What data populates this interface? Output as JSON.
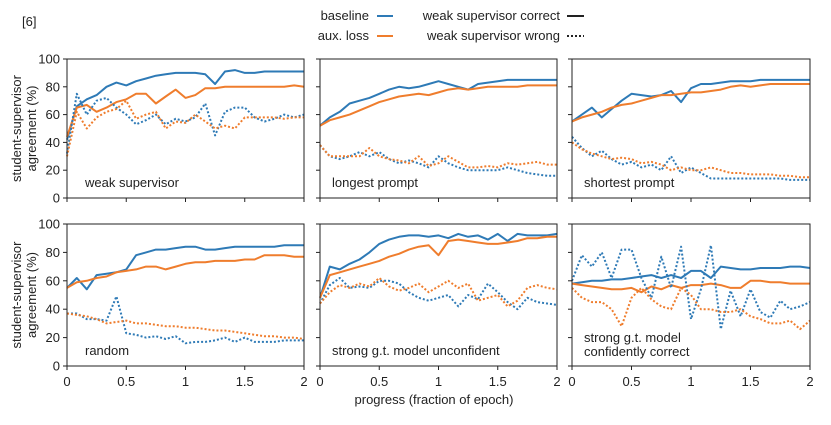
{
  "figure_ref": "[6]",
  "colors": {
    "baseline": "#2e7ab6",
    "aux": "#ef7d2d",
    "axis": "#222222"
  },
  "legend": {
    "series": [
      {
        "label": "baseline",
        "color": "#2e7ab6"
      },
      {
        "label": "aux. loss",
        "color": "#ef7d2d"
      }
    ],
    "styles": [
      {
        "label": "weak supervisor correct",
        "style": "solid"
      },
      {
        "label": "weak supervisor wrong",
        "style": "dotted"
      }
    ]
  },
  "xlabel": "progress (fraction of epoch)",
  "ylabel_lines": [
    "student-supervisor",
    "agreement (%)"
  ],
  "chart_data": [
    {
      "type": "line",
      "title": "weak supervisor",
      "x": [
        0,
        0.083,
        0.167,
        0.25,
        0.333,
        0.417,
        0.5,
        0.583,
        0.667,
        0.75,
        0.833,
        0.917,
        1,
        1.083,
        1.167,
        1.25,
        1.333,
        1.417,
        1.5,
        1.583,
        1.667,
        1.75,
        1.833,
        1.917,
        2
      ],
      "xlim": [
        0,
        2
      ],
      "ylim": [
        0,
        100
      ],
      "xticks": [
        0,
        0.5,
        1,
        1.5,
        2
      ],
      "yticks": [
        0,
        20,
        40,
        60,
        80,
        100
      ],
      "series": [
        {
          "name": "baseline",
          "style": "correct",
          "values": [
            42,
            66,
            71,
            74,
            80,
            83,
            81,
            84,
            86,
            88,
            89,
            90,
            90,
            90,
            89,
            82,
            91,
            92,
            90,
            90,
            91,
            91,
            91,
            91,
            91
          ]
        },
        {
          "name": "aux. loss",
          "style": "correct",
          "values": [
            44,
            65,
            67,
            62,
            65,
            69,
            71,
            75,
            75,
            68,
            73,
            78,
            72,
            74,
            79,
            79,
            80,
            80,
            80,
            80,
            80,
            80,
            80,
            81,
            80
          ]
        },
        {
          "name": "baseline",
          "style": "wrong",
          "values": [
            32,
            75,
            60,
            70,
            72,
            65,
            60,
            53,
            56,
            60,
            53,
            57,
            55,
            58,
            68,
            45,
            62,
            65,
            65,
            58,
            55,
            57,
            60,
            58,
            60
          ]
        },
        {
          "name": "aux. loss",
          "style": "wrong",
          "values": [
            30,
            62,
            50,
            58,
            62,
            64,
            70,
            57,
            60,
            62,
            50,
            55,
            54,
            60,
            55,
            50,
            52,
            50,
            58,
            58,
            58,
            58,
            57,
            58,
            58
          ]
        }
      ]
    },
    {
      "type": "line",
      "title": "longest prompt",
      "x": [
        0,
        0.083,
        0.167,
        0.25,
        0.333,
        0.417,
        0.5,
        0.583,
        0.667,
        0.75,
        0.833,
        0.917,
        1,
        1.083,
        1.167,
        1.25,
        1.333,
        1.417,
        1.5,
        1.583,
        1.667,
        1.75,
        1.833,
        1.917,
        2
      ],
      "xlim": [
        0,
        2
      ],
      "ylim": [
        0,
        100
      ],
      "xticks": [
        0,
        0.5,
        1,
        1.5,
        2
      ],
      "yticks": [
        0,
        20,
        40,
        60,
        80,
        100
      ],
      "series": [
        {
          "name": "baseline",
          "style": "correct",
          "values": [
            52,
            58,
            62,
            68,
            70,
            72,
            75,
            78,
            80,
            79,
            80,
            82,
            84,
            82,
            80,
            78,
            82,
            83,
            84,
            85,
            85,
            85,
            85,
            85,
            85
          ]
        },
        {
          "name": "aux. loss",
          "style": "correct",
          "values": [
            52,
            56,
            58,
            60,
            63,
            66,
            69,
            71,
            73,
            74,
            75,
            74,
            76,
            78,
            79,
            78,
            79,
            80,
            80,
            80,
            80,
            81,
            81,
            81,
            81
          ]
        },
        {
          "name": "baseline",
          "style": "wrong",
          "values": [
            38,
            30,
            28,
            30,
            33,
            30,
            33,
            28,
            25,
            27,
            25,
            22,
            30,
            25,
            22,
            20,
            20,
            20,
            20,
            22,
            20,
            18,
            17,
            16,
            16
          ]
        },
        {
          "name": "aux. loss",
          "style": "wrong",
          "values": [
            38,
            30,
            30,
            30,
            30,
            36,
            30,
            28,
            27,
            25,
            30,
            23,
            25,
            30,
            26,
            22,
            22,
            23,
            22,
            25,
            24,
            25,
            26,
            24,
            24
          ]
        }
      ]
    },
    {
      "type": "line",
      "title": "shortest prompt",
      "x": [
        0,
        0.083,
        0.167,
        0.25,
        0.333,
        0.417,
        0.5,
        0.583,
        0.667,
        0.75,
        0.833,
        0.917,
        1,
        1.083,
        1.167,
        1.25,
        1.333,
        1.417,
        1.5,
        1.583,
        1.667,
        1.75,
        1.833,
        1.917,
        2
      ],
      "xlim": [
        0,
        2
      ],
      "ylim": [
        0,
        100
      ],
      "xticks": [
        0,
        0.5,
        1,
        1.5,
        2
      ],
      "yticks": [
        0,
        20,
        40,
        60,
        80,
        100
      ],
      "series": [
        {
          "name": "baseline",
          "style": "correct",
          "values": [
            55,
            60,
            65,
            58,
            64,
            70,
            75,
            74,
            73,
            74,
            77,
            69,
            79,
            82,
            82,
            83,
            84,
            84,
            84,
            85,
            85,
            85,
            85,
            85,
            85
          ]
        },
        {
          "name": "aux. loss",
          "style": "correct",
          "values": [
            55,
            58,
            60,
            62,
            65,
            67,
            68,
            70,
            72,
            74,
            74,
            75,
            76,
            76,
            77,
            78,
            80,
            81,
            80,
            81,
            82,
            82,
            82,
            82,
            82
          ]
        },
        {
          "name": "baseline",
          "style": "wrong",
          "values": [
            44,
            36,
            30,
            34,
            28,
            24,
            26,
            22,
            24,
            20,
            30,
            18,
            22,
            18,
            14,
            14,
            14,
            14,
            14,
            14,
            14,
            14,
            13,
            13,
            13
          ]
        },
        {
          "name": "aux. loss",
          "style": "wrong",
          "values": [
            40,
            35,
            32,
            30,
            28,
            29,
            28,
            25,
            26,
            24,
            20,
            22,
            20,
            20,
            22,
            20,
            18,
            18,
            17,
            17,
            17,
            16,
            16,
            15,
            15
          ]
        }
      ]
    },
    {
      "type": "line",
      "title": "random",
      "x": [
        0,
        0.083,
        0.167,
        0.25,
        0.333,
        0.417,
        0.5,
        0.583,
        0.667,
        0.75,
        0.833,
        0.917,
        1,
        1.083,
        1.167,
        1.25,
        1.333,
        1.417,
        1.5,
        1.583,
        1.667,
        1.75,
        1.833,
        1.917,
        2
      ],
      "xlim": [
        0,
        2
      ],
      "ylim": [
        0,
        100
      ],
      "xticks": [
        0,
        0.5,
        1,
        1.5,
        2
      ],
      "yticks": [
        0,
        20,
        40,
        60,
        80,
        100
      ],
      "series": [
        {
          "name": "baseline",
          "style": "correct",
          "values": [
            55,
            62,
            54,
            64,
            65,
            66,
            68,
            78,
            80,
            82,
            82,
            83,
            84,
            84,
            82,
            82,
            83,
            84,
            84,
            84,
            84,
            84,
            85,
            85,
            85
          ]
        },
        {
          "name": "aux. loss",
          "style": "correct",
          "values": [
            55,
            59,
            60,
            62,
            63,
            66,
            67,
            68,
            70,
            70,
            68,
            70,
            72,
            73,
            73,
            74,
            74,
            74,
            75,
            75,
            78,
            78,
            78,
            77,
            77
          ]
        },
        {
          "name": "baseline",
          "style": "wrong",
          "values": [
            37,
            37,
            33,
            33,
            32,
            49,
            23,
            22,
            20,
            21,
            19,
            21,
            16,
            17,
            17,
            18,
            20,
            17,
            20,
            17,
            17,
            17,
            18,
            18,
            18
          ]
        },
        {
          "name": "aux. loss",
          "style": "wrong",
          "values": [
            37,
            36,
            35,
            33,
            30,
            31,
            32,
            30,
            30,
            29,
            28,
            28,
            27,
            27,
            26,
            25,
            25,
            24,
            23,
            22,
            21,
            21,
            20,
            20,
            19
          ]
        }
      ]
    },
    {
      "type": "line",
      "title": "strong g.t. model unconfident",
      "x": [
        0,
        0.083,
        0.167,
        0.25,
        0.333,
        0.417,
        0.5,
        0.583,
        0.667,
        0.75,
        0.833,
        0.917,
        1,
        1.083,
        1.167,
        1.25,
        1.333,
        1.417,
        1.5,
        1.583,
        1.667,
        1.75,
        1.833,
        1.917,
        2
      ],
      "xlim": [
        0,
        2
      ],
      "ylim": [
        0,
        100
      ],
      "xticks": [
        0,
        0.5,
        1,
        1.5,
        2
      ],
      "yticks": [
        0,
        20,
        40,
        60,
        80,
        100
      ],
      "series": [
        {
          "name": "baseline",
          "style": "correct",
          "values": [
            48,
            70,
            68,
            72,
            75,
            80,
            86,
            89,
            91,
            92,
            92,
            91,
            92,
            90,
            93,
            91,
            92,
            89,
            93,
            88,
            93,
            92,
            92,
            92,
            93
          ]
        },
        {
          "name": "aux. loss",
          "style": "correct",
          "values": [
            48,
            64,
            66,
            68,
            70,
            72,
            74,
            77,
            79,
            82,
            84,
            85,
            78,
            88,
            89,
            88,
            87,
            86,
            86,
            87,
            88,
            90,
            90,
            91,
            91
          ]
        },
        {
          "name": "baseline",
          "style": "wrong",
          "values": [
            44,
            57,
            62,
            55,
            56,
            55,
            60,
            60,
            58,
            52,
            48,
            46,
            48,
            50,
            42,
            50,
            47,
            58,
            52,
            45,
            40,
            48,
            45,
            44,
            43
          ]
        },
        {
          "name": "aux. loss",
          "style": "wrong",
          "values": [
            44,
            52,
            57,
            55,
            58,
            56,
            62,
            56,
            53,
            55,
            58,
            52,
            56,
            60,
            55,
            58,
            46,
            48,
            50,
            42,
            46,
            55,
            57,
            55,
            54
          ]
        }
      ]
    },
    {
      "type": "line",
      "title": "strong g.t. model confidently correct",
      "x": [
        0,
        0.083,
        0.167,
        0.25,
        0.333,
        0.417,
        0.5,
        0.583,
        0.667,
        0.75,
        0.833,
        0.917,
        1,
        1.083,
        1.167,
        1.25,
        1.333,
        1.417,
        1.5,
        1.583,
        1.667,
        1.75,
        1.833,
        1.917,
        2
      ],
      "xlim": [
        0,
        2
      ],
      "ylim": [
        0,
        100
      ],
      "xticks": [
        0,
        0.5,
        1,
        1.5,
        2
      ],
      "yticks": [
        0,
        20,
        40,
        60,
        80,
        100
      ],
      "series": [
        {
          "name": "baseline",
          "style": "correct",
          "values": [
            58,
            59,
            60,
            60,
            61,
            61,
            62,
            63,
            64,
            62,
            64,
            62,
            67,
            67,
            62,
            70,
            69,
            68,
            68,
            69,
            69,
            69,
            70,
            70,
            69
          ]
        },
        {
          "name": "aux. loss",
          "style": "correct",
          "values": [
            58,
            57,
            56,
            55,
            54,
            54,
            55,
            52,
            56,
            54,
            57,
            55,
            57,
            57,
            58,
            57,
            55,
            55,
            60,
            60,
            59,
            59,
            58,
            58,
            58
          ]
        },
        {
          "name": "baseline",
          "style": "wrong",
          "values": [
            60,
            78,
            70,
            80,
            62,
            82,
            82,
            62,
            48,
            77,
            55,
            84,
            33,
            54,
            85,
            26,
            53,
            35,
            54,
            38,
            34,
            46,
            40,
            42,
            45
          ]
        },
        {
          "name": "aux. loss",
          "style": "wrong",
          "values": [
            55,
            48,
            45,
            45,
            40,
            28,
            48,
            55,
            47,
            42,
            40,
            55,
            50,
            40,
            40,
            38,
            38,
            40,
            35,
            33,
            30,
            30,
            32,
            26,
            32
          ]
        }
      ]
    }
  ]
}
